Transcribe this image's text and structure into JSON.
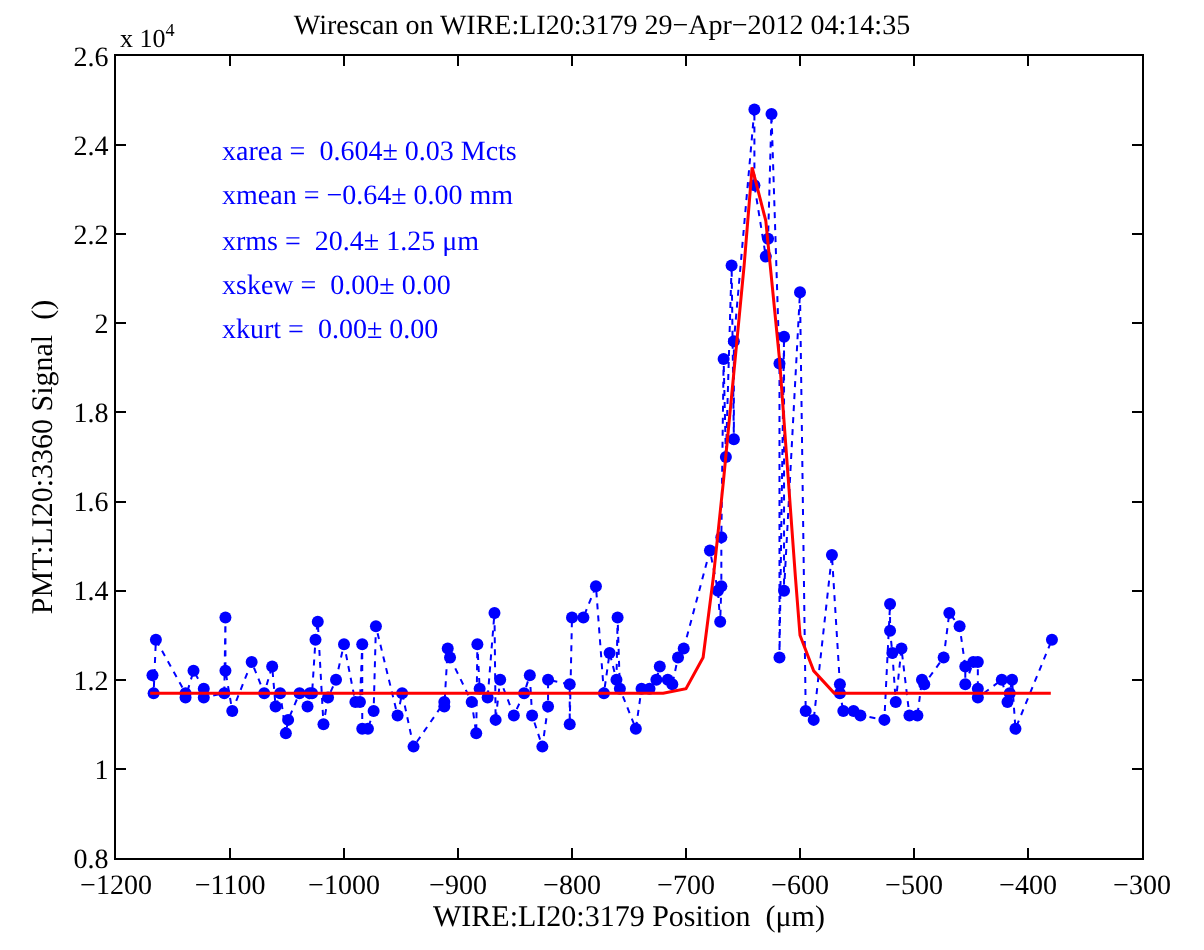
{
  "chart_data": {
    "type": "line",
    "title": "Wirescan on WIRE:LI20:3179 29−Apr−2012 04:14:35",
    "xlabel": "WIRE:LI20:3179 Position  (μm)",
    "ylabel": "PMT:LI20:3360 Signal  ()",
    "annotations": [
      "x 10$^{4}$",
      "xarea =  0.604± 0.03 Mcts",
      "xmean = −0.64± 0.00 mm",
      "xrms =  20.4± 1.25 μm",
      "xskew =  0.00± 0.00",
      "xkurt =  0.00± 0.00"
    ],
    "xlim": [
      -1200,
      -300
    ],
    "xticks": [
      -1200,
      -1100,
      -1000,
      -900,
      -800,
      -700,
      -600,
      -500,
      -400,
      -300
    ],
    "ylim": [
      0.8,
      2.6
    ],
    "yticks": [
      0.8,
      1,
      1.2,
      1.4,
      1.6,
      1.8,
      2,
      2.2,
      2.4,
      2.6
    ],
    "series": [
      {
        "color": "#0000ff",
        "marker": "circle",
        "line_style": "dotted",
        "x": [
          -1168,
          -1167,
          -1165,
          -1139,
          -1139,
          -1132,
          -1123,
          -1123,
          -1105,
          -1104,
          -1104,
          -1098,
          -1081,
          -1070,
          -1063,
          -1060,
          -1056,
          -1051,
          -1049,
          -1039,
          -1032,
          -1030,
          -1028,
          -1025,
          -1023,
          -1018,
          -1014,
          -1007,
          -1000,
          -990,
          -986,
          -984,
          -984,
          -979,
          -974,
          -972,
          -953,
          -949,
          -939,
          -912,
          -912,
          -909,
          -907,
          -888,
          -884,
          -883,
          -881,
          -874,
          -868,
          -867,
          -863,
          -851,
          -842,
          -837,
          -835,
          -826,
          -821,
          -821,
          -802,
          -802,
          -800,
          -790,
          -779,
          -772,
          -767,
          -761,
          -760,
          -758,
          -744,
          -739,
          -732,
          -726,
          -723,
          -716,
          -712,
          -707,
          -702,
          -679,
          -672,
          -670,
          -669,
          -669,
          -667,
          -665,
          -660,
          -658,
          -658,
          -640,
          -640,
          -630,
          -628,
          -625,
          -618,
          -618,
          -614,
          -614,
          -600,
          -595,
          -588,
          -572,
          -565,
          -565,
          -562,
          -553,
          -547,
          -526,
          -521,
          -521,
          -519,
          -516,
          -511,
          -504,
          -497,
          -493,
          -491,
          -474,
          -469,
          -460,
          -455,
          -455,
          -448,
          -444,
          -444,
          -444,
          -423,
          -418,
          -416,
          -414,
          -411,
          -379
        ],
        "values": [
          1.21,
          1.17,
          1.29,
          1.17,
          1.16,
          1.22,
          1.18,
          1.16,
          1.17,
          1.34,
          1.22,
          1.13,
          1.24,
          1.17,
          1.23,
          1.14,
          1.17,
          1.08,
          1.11,
          1.17,
          1.14,
          1.17,
          1.17,
          1.29,
          1.33,
          1.1,
          1.16,
          1.2,
          1.28,
          1.15,
          1.15,
          1.28,
          1.09,
          1.09,
          1.13,
          1.32,
          1.12,
          1.17,
          1.05,
          1.15,
          1.14,
          1.27,
          1.25,
          1.15,
          1.08,
          1.28,
          1.18,
          1.16,
          1.35,
          1.11,
          1.2,
          1.12,
          1.17,
          1.21,
          1.12,
          1.05,
          1.14,
          1.2,
          1.19,
          1.1,
          1.34,
          1.34,
          1.41,
          1.17,
          1.26,
          1.2,
          1.34,
          1.18,
          1.09,
          1.18,
          1.18,
          1.2,
          1.23,
          1.2,
          1.19,
          1.25,
          1.27,
          1.49,
          1.4,
          1.33,
          1.41,
          1.52,
          1.92,
          1.7,
          2.13,
          1.74,
          1.96,
          2.48,
          2.31,
          2.15,
          2.19,
          2.47,
          1.91,
          1.25,
          1.97,
          1.4,
          2.07,
          1.13,
          1.11,
          1.48,
          1.19,
          1.17,
          1.13,
          1.13,
          1.12,
          1.11,
          1.37,
          1.31,
          1.26,
          1.15,
          1.27,
          1.12,
          1.12,
          1.2,
          1.19,
          1.25,
          1.35,
          1.32,
          1.23,
          1.19,
          1.24,
          1.24,
          1.18,
          1.16,
          1.2,
          1.15,
          1.17,
          1.2,
          1.09,
          1.29
        ]
      },
      {
        "color": "#ff0000",
        "marker": "none",
        "line_style": "solid",
        "x": [
          -1170,
          -720,
          -700,
          -685,
          -676,
          -667,
          -649,
          -642,
          -630,
          -618,
          -604,
          -600,
          -588,
          -570,
          -380
        ],
        "values": [
          1.17,
          1.17,
          1.18,
          1.25,
          1.43,
          1.65,
          2.13,
          2.35,
          2.23,
          1.92,
          1.43,
          1.3,
          1.22,
          1.17,
          1.17
        ]
      }
    ]
  }
}
